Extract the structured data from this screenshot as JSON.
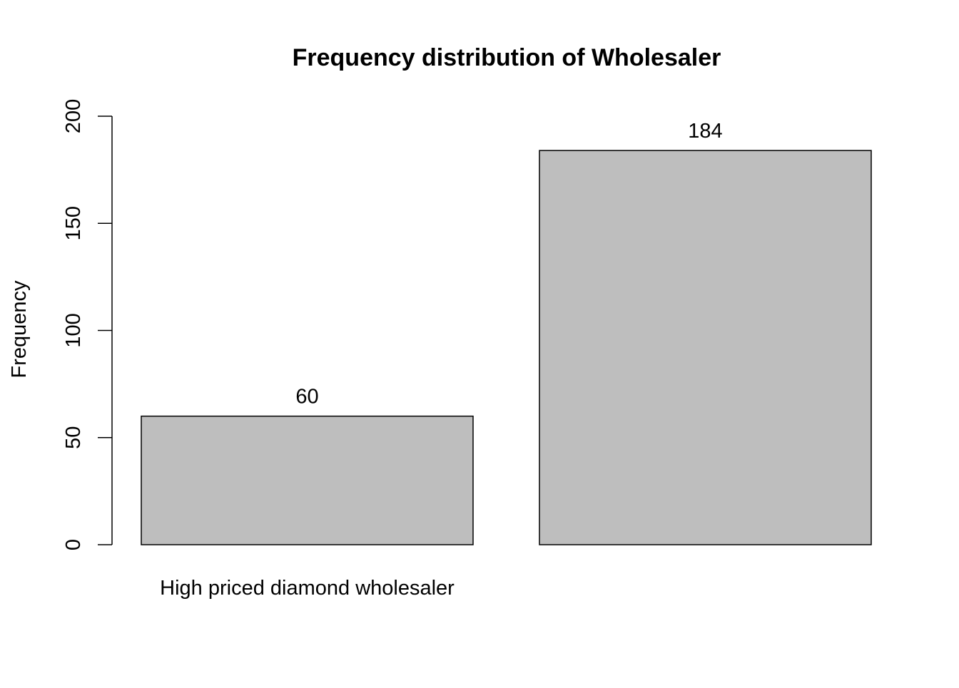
{
  "chart_data": {
    "type": "bar",
    "title": "Frequency distribution of Wholesaler",
    "xlabel": "",
    "ylabel": "Frequency",
    "categories": [
      "High priced diamond wholesaler",
      ""
    ],
    "values": [
      60,
      184
    ],
    "data_labels": [
      "60",
      "184"
    ],
    "ylim": [
      0,
      200
    ],
    "yticks": [
      0,
      50,
      100,
      150,
      200
    ],
    "ytick_labels": [
      "0",
      "50",
      "100",
      "150",
      "200"
    ],
    "grid": false,
    "bar_fill": "#bebebe",
    "bar_stroke": "#000000"
  }
}
